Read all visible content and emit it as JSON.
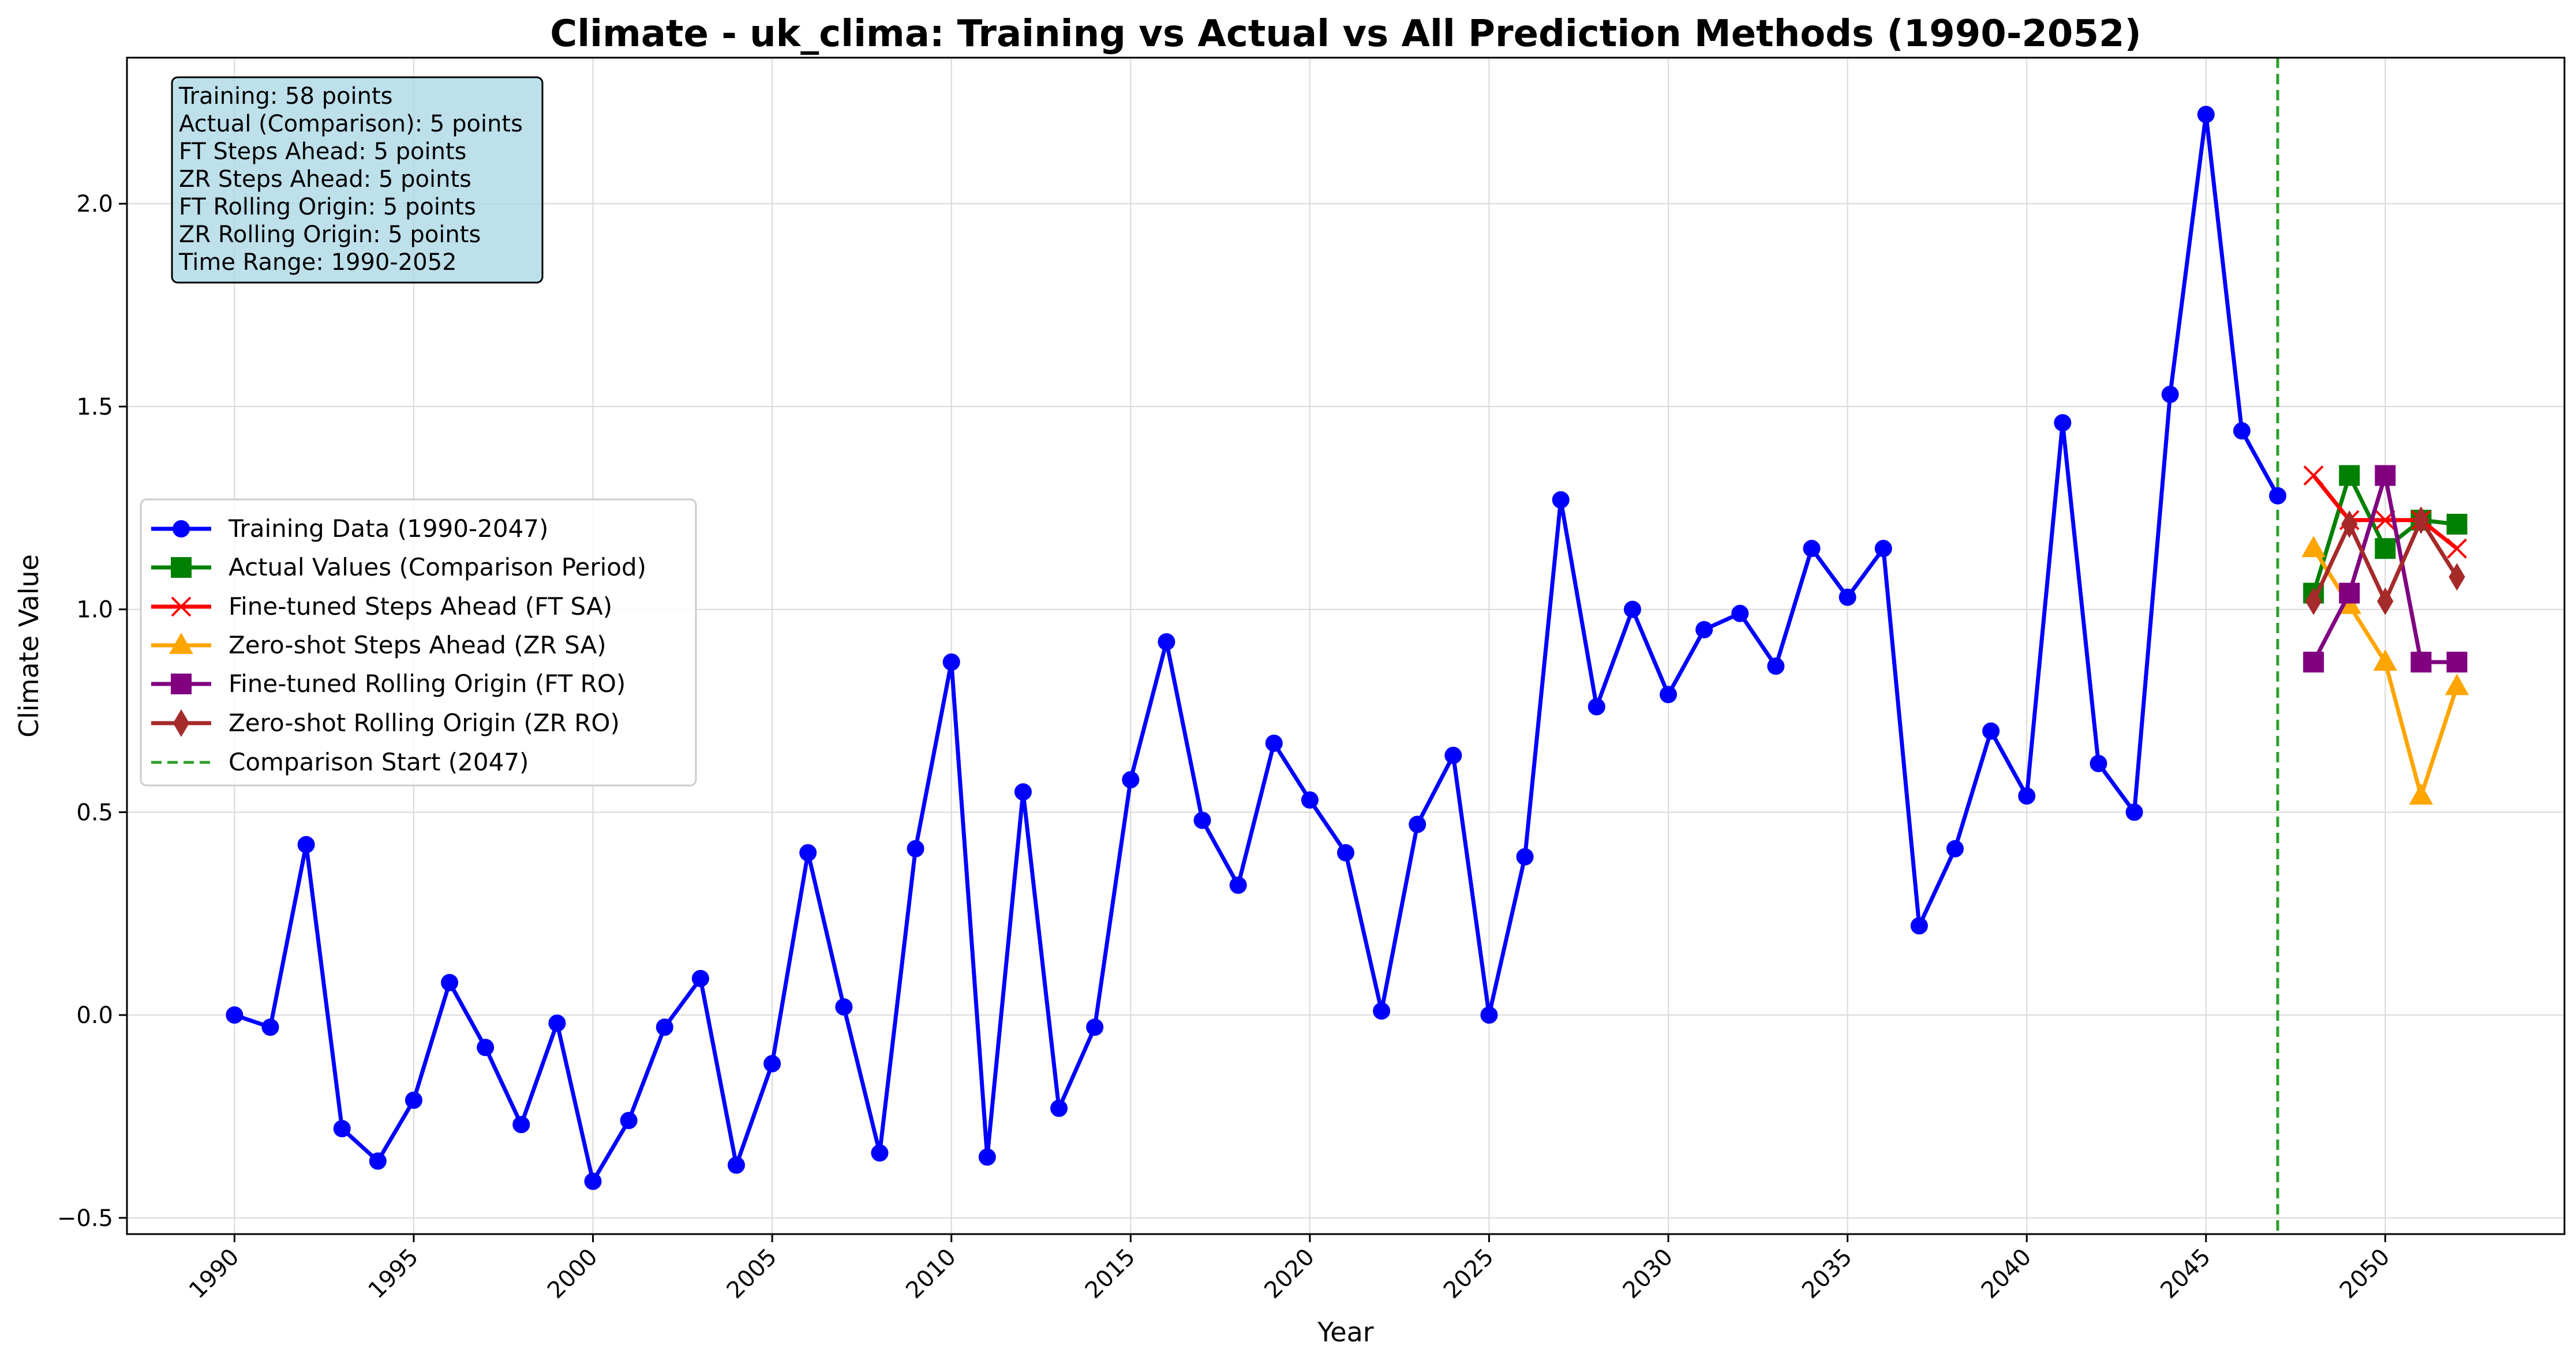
{
  "chart_data": {
    "type": "line",
    "title": "Climate - uk_clima: Training vs Actual vs All Prediction Methods (1990-2052)",
    "xlabel": "Year",
    "ylabel": "Climate Value",
    "xlim": [
      1987.0,
      2055.0
    ],
    "ylim": [
      -0.54,
      2.36
    ],
    "x_ticks": [
      1990,
      1995,
      2000,
      2005,
      2010,
      2015,
      2020,
      2025,
      2030,
      2035,
      2040,
      2045,
      2050
    ],
    "y_ticks": [
      -0.5,
      0.0,
      0.5,
      1.0,
      1.5,
      2.0
    ],
    "y_tick_labels": [
      "−0.5",
      "0.0",
      "0.5",
      "1.0",
      "1.5",
      "2.0"
    ],
    "grid": true,
    "legend_placement": "center-left",
    "info_box": {
      "lines": [
        "Training: 58 points",
        "Actual (Comparison): 5 points",
        "FT Steps Ahead: 5 points",
        "ZR Steps Ahead: 5 points",
        "FT Rolling Origin: 5 points",
        "ZR Rolling Origin: 5 points",
        "Time Range: 1990-2052"
      ],
      "background": "#add8e6"
    },
    "vline": {
      "x": 2047,
      "label": "Comparison Start (2047)",
      "color": "#2ca02c",
      "style": "dashed"
    },
    "series": [
      {
        "name": "Training Data (1990-2047)",
        "color": "#0000ff",
        "marker": "circle",
        "x": [
          1990,
          1991,
          1992,
          1993,
          1994,
          1995,
          1996,
          1997,
          1998,
          1999,
          2000,
          2001,
          2002,
          2003,
          2004,
          2005,
          2006,
          2007,
          2008,
          2009,
          2010,
          2011,
          2012,
          2013,
          2014,
          2015,
          2016,
          2017,
          2018,
          2019,
          2020,
          2021,
          2022,
          2023,
          2024,
          2025,
          2026,
          2027,
          2028,
          2029,
          2030,
          2031,
          2032,
          2033,
          2034,
          2035,
          2036,
          2037,
          2038,
          2039,
          2040,
          2041,
          2042,
          2043,
          2044,
          2045,
          2046,
          2047
        ],
        "y": [
          0.0,
          -0.03,
          0.42,
          -0.28,
          -0.36,
          -0.21,
          0.08,
          -0.08,
          -0.27,
          -0.02,
          -0.41,
          -0.26,
          -0.03,
          0.09,
          -0.37,
          -0.12,
          0.4,
          0.02,
          -0.34,
          0.41,
          0.87,
          -0.35,
          0.55,
          -0.23,
          -0.03,
          0.58,
          0.92,
          0.48,
          0.32,
          0.67,
          0.53,
          0.4,
          0.01,
          0.47,
          0.64,
          0.0,
          0.39,
          1.27,
          0.76,
          1.0,
          0.79,
          0.95,
          0.99,
          0.86,
          1.15,
          1.03,
          1.15,
          0.22,
          0.41,
          0.7,
          0.54,
          1.46,
          0.62,
          0.5,
          1.53,
          2.22,
          1.44,
          1.28
        ]
      },
      {
        "name": "Actual Values (Comparison Period)",
        "color": "#008000",
        "marker": "square",
        "x": [
          2048,
          2049,
          2050,
          2051,
          2052
        ],
        "y": [
          1.04,
          1.33,
          1.15,
          1.22,
          1.21
        ]
      },
      {
        "name": "Fine-tuned Steps Ahead (FT SA)",
        "color": "#ff0000",
        "marker": "x",
        "x": [
          2048,
          2049,
          2050,
          2051,
          2052
        ],
        "y": [
          1.33,
          1.22,
          1.22,
          1.22,
          1.15
        ]
      },
      {
        "name": "Zero-shot Steps Ahead (ZR SA)",
        "color": "#ffa500",
        "marker": "triangle",
        "x": [
          2048,
          2049,
          2050,
          2051,
          2052
        ],
        "y": [
          1.15,
          1.01,
          0.87,
          0.54,
          0.81
        ]
      },
      {
        "name": "Fine-tuned Rolling Origin (FT RO)",
        "color": "#800080",
        "marker": "square",
        "x": [
          2048,
          2049,
          2050,
          2051,
          2052
        ],
        "y": [
          0.87,
          1.04,
          1.33,
          0.87,
          0.87
        ]
      },
      {
        "name": "Zero-shot Rolling Origin (ZR RO)",
        "color": "#a52a2a",
        "marker": "diamond",
        "x": [
          2048,
          2049,
          2050,
          2051,
          2052
        ],
        "y": [
          1.02,
          1.21,
          1.02,
          1.22,
          1.08
        ]
      }
    ]
  }
}
